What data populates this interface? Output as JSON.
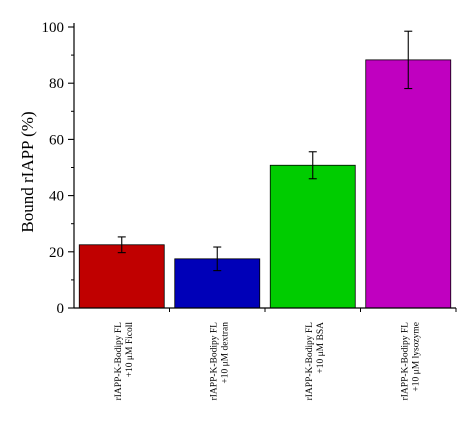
{
  "chart_data": {
    "type": "bar",
    "title": "",
    "xlabel": "",
    "ylabel": "Bound rIAPP (%)",
    "ylim": [
      0,
      100
    ],
    "yticks": [
      0,
      20,
      40,
      60,
      80,
      100
    ],
    "grid": false,
    "legend": "none",
    "categories": [
      [
        "rIAPP-K-Bodipy FL",
        "+10 μM Ficoll"
      ],
      [
        "rIAPP-K-Bodipy FL",
        "+10 μM dextran"
      ],
      [
        "rIAPP-K-Bodipy FL",
        "+10 μM BSA"
      ],
      [
        "rIAPP-K-Bodipy FL",
        "+10 μM lysozyme"
      ]
    ],
    "values": [
      22.5,
      17.5,
      50.8,
      88.3
    ],
    "errors": [
      2.8,
      4.2,
      4.8,
      10.2
    ],
    "colors": [
      "#c00000",
      "#0000b8",
      "#00cc00",
      "#c000c0"
    ]
  }
}
